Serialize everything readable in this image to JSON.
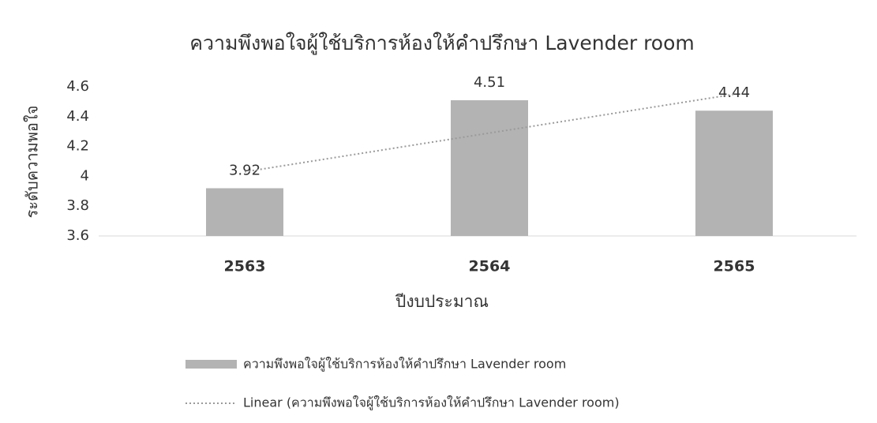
{
  "chart_data": {
    "type": "bar",
    "title": "ความพึงพอใจผู้ใช้บริการห้องให้คำปรึกษา Lavender room",
    "x_label": "ปีงบประมาณ",
    "y_label": "ระดับความพอใจ",
    "categories": [
      "2563",
      "2564",
      "2565"
    ],
    "series": [
      {
        "name": "ความพึงพอใจผู้ใช้บริการห้องให้คำปรึกษา Lavender room",
        "color": "#b3b3b3",
        "values": [
          3.92,
          4.51,
          4.44
        ]
      }
    ],
    "trendline": {
      "type": "linear",
      "label": "Linear (ความพึงพอใจผู้ใช้บริการห้องให้คำปรึกษา Lavender room)",
      "color": "#9a9a9a"
    },
    "ylim": [
      3.6,
      4.6
    ],
    "yticks": [
      3.6,
      3.8,
      4,
      4.2,
      4.4,
      4.6
    ],
    "grid": false,
    "legend": "bottom"
  }
}
